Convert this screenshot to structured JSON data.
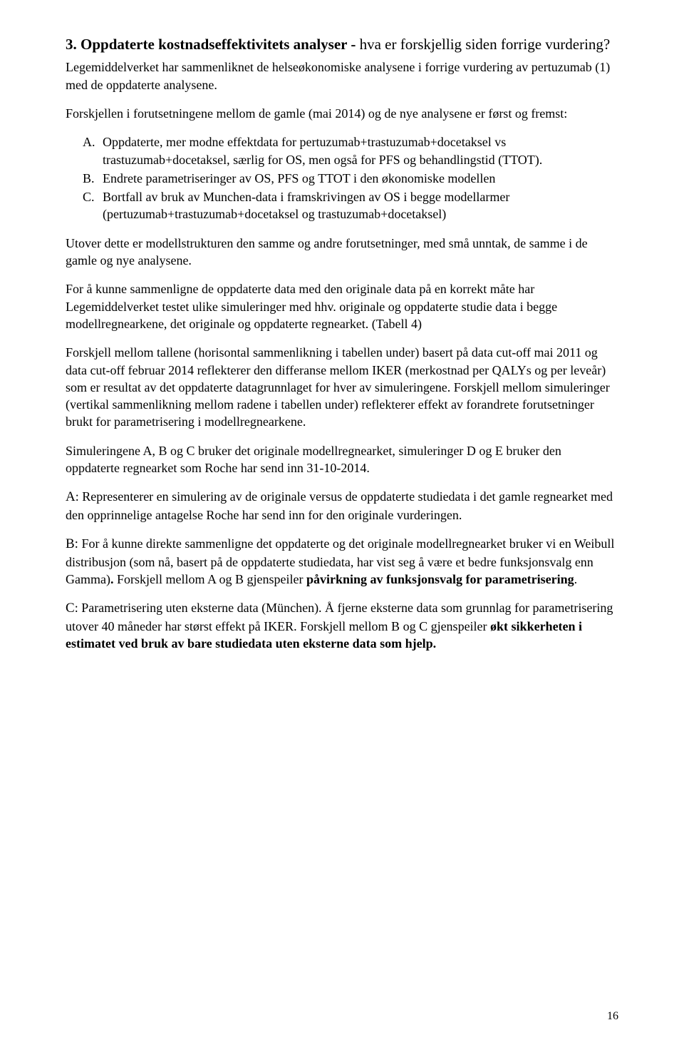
{
  "heading": {
    "prefix": "3. Oppdaterte kostnadseffektivitets analyser - ",
    "suffix": "hva er forskjellig siden forrige vurdering?"
  },
  "p1": "Legemiddelverket har sammenliknet de helseøkonomiske analysene i forrige vurdering av pertuzumab (1) med de oppdaterte analysene.",
  "p2": "Forskjellen i forutsetningene mellom de gamle (mai 2014) og de nye analysene er først og fremst:",
  "list": {
    "a": {
      "marker": "A.",
      "text": "Oppdaterte, mer modne effektdata for pertuzumab+trastuzumab+docetaksel vs trastuzumab+docetaksel, særlig for OS, men også for PFS og behandlingstid (TTOT)."
    },
    "b": {
      "marker": "B.",
      "text": "Endrete parametriseringer av OS, PFS og TTOT i den økonomiske modellen"
    },
    "c": {
      "marker": "C.",
      "text": "Bortfall av bruk av Munchen-data i framskrivingen av OS i begge modellarmer (pertuzumab+trastuzumab+docetaksel og trastuzumab+docetaksel)"
    }
  },
  "p3": "Utover dette er modellstrukturen den samme og andre forutsetninger, med små unntak, de samme i de gamle og nye analysene.",
  "p4": "For å kunne sammenligne de oppdaterte data med den originale data på en korrekt måte har Legemiddelverket testet ulike simuleringer med hhv. originale og oppdaterte studie data i begge modellregnearkene, det originale og oppdaterte regnearket. (Tabell 4)",
  "p5": "Forskjell mellom tallene (horisontal sammenlikning i tabellen under) basert på data cut-off mai 2011 og data cut-off februar 2014 reflekterer den differanse mellom IKER (merkostnad per QALYs og per leveår) som er resultat av det oppdaterte datagrunnlaget for hver av simuleringene. Forskjell mellom simuleringer (vertikal sammenlikning mellom radene i tabellen under) reflekterer effekt av forandrete forutsetninger brukt for parametrisering i modellregnearkene.",
  "p6": "Simuleringene A, B og C bruker det originale modellregnearket, simuleringer D og E bruker den oppdaterte regnearket som Roche har send inn 31-10-2014.",
  "pa": {
    "label": "A",
    "text": ": Representerer en simulering av de originale versus de oppdaterte studiedata i det gamle regnearket med den opprinnelige antagelse Roche har send inn for den originale vurderingen."
  },
  "pb": {
    "label": "B:",
    "pre": " For å kunne direkte sammenligne det oppdaterte og det originale modellregnearket bruker vi en Weibull distribusjon (som nå, basert på de oppdaterte studiedata, har vist seg å være et bedre funksjonsvalg enn Gamma)",
    "bold1": ". ",
    "mid": "Forskjell mellom A og B gjenspeiler ",
    "bold2": "påvirkning av funksjonsvalg for parametrisering",
    "post": "."
  },
  "pc": {
    "label": "C",
    "pre": ": Parametrisering uten eksterne data (München). Å fjerne eksterne data som grunnlag for parametrisering utover 40 måneder har størst effekt på IKER. Forskjell mellom B og C gjenspeiler ",
    "bold": "økt sikkerheten i estimatet ved bruk av bare studiedata uten eksterne data som hjelp.",
    "post": ""
  },
  "page_number": "16"
}
